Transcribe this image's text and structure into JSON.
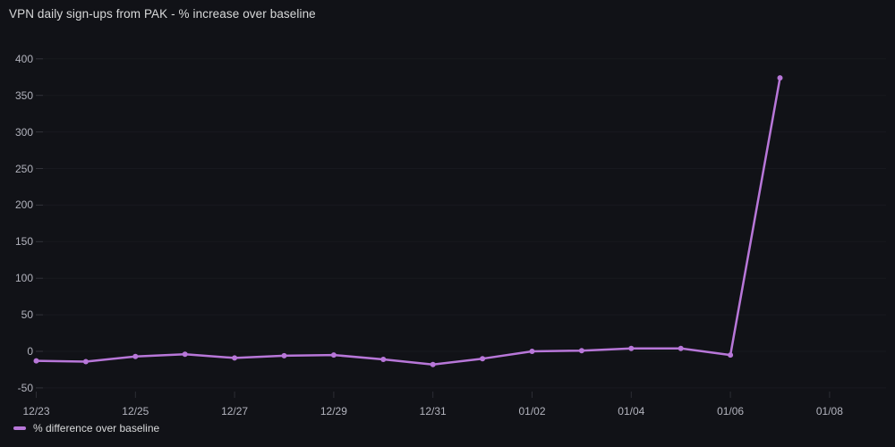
{
  "chart": {
    "title": "VPN daily sign-ups from PAK - % increase over baseline",
    "legend_label": "% difference over baseline"
  },
  "chart_data": {
    "type": "line",
    "title": "VPN daily sign-ups from PAK - % increase over baseline",
    "x": [
      "12/23",
      "12/24",
      "12/25",
      "12/26",
      "12/27",
      "12/28",
      "12/29",
      "12/30",
      "12/31",
      "01/01",
      "01/02",
      "01/03",
      "01/04",
      "01/05",
      "01/06",
      "01/07"
    ],
    "series": [
      {
        "name": "% difference over baseline",
        "values": [
          -13,
          -14,
          -7,
          -4,
          -9,
          -6,
          -5,
          -11,
          -18,
          -10,
          0,
          1,
          4,
          4,
          -5,
          374
        ]
      }
    ],
    "x_tick_labels": [
      "12/23",
      "12/25",
      "12/27",
      "12/29",
      "12/31",
      "01/02",
      "01/04",
      "01/06",
      "01/08"
    ],
    "y_tick_labels": [
      "400",
      "350",
      "300",
      "250",
      "200",
      "150",
      "100",
      "50",
      "0",
      "-50"
    ],
    "y_tick_values": [
      400,
      350,
      300,
      250,
      200,
      150,
      100,
      50,
      0,
      -50
    ],
    "ylim": [
      -50,
      400
    ],
    "xlabel": "",
    "ylabel": "",
    "grid": "off",
    "legend_position": "bottom-left",
    "line_color": "#b877d9",
    "background_color": "#111217",
    "point_markers": true
  }
}
